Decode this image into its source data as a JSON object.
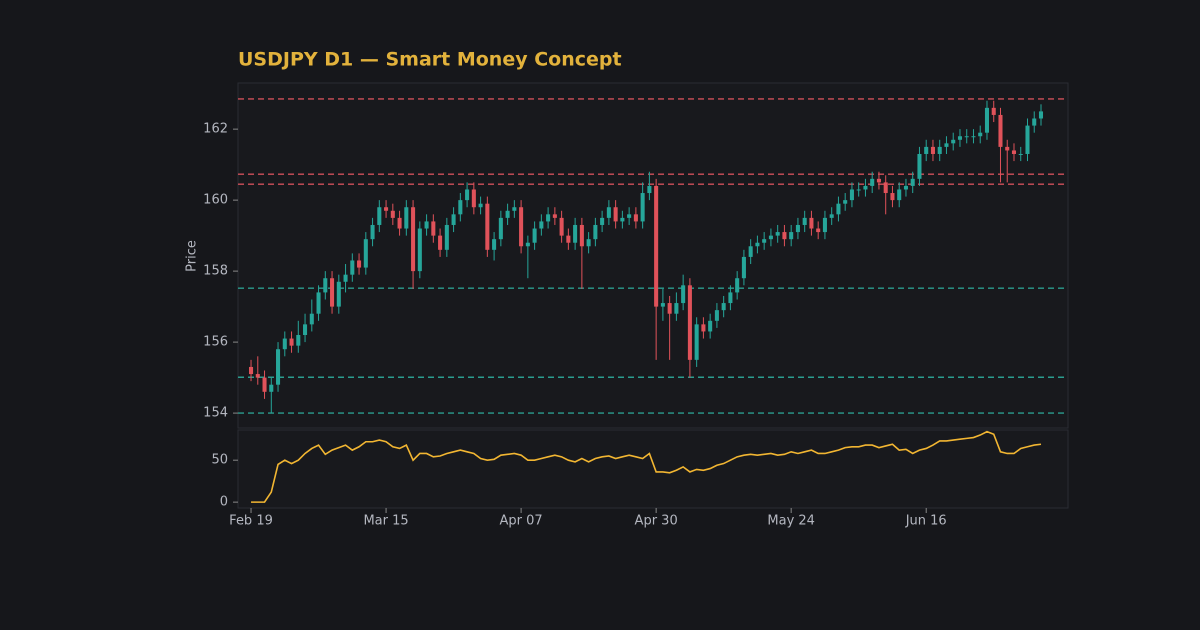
{
  "chart_data": [
    {
      "type": "candlestick",
      "title": "USDJPY D1 — Smart Money Concept",
      "ylabel": "Price",
      "up_color": "#26a69a",
      "down_color": "#e0525a",
      "xlim": [
        -1.93,
        121
      ],
      "ylim": [
        153.58,
        163.3
      ],
      "yticks": [
        154,
        156,
        158,
        160,
        162
      ],
      "levels": [
        {
          "value": 162.85,
          "color": "#d0505a"
        },
        {
          "value": 160.73,
          "color": "#d0505a"
        },
        {
          "value": 160.45,
          "color": "#d0505a"
        },
        {
          "value": 157.52,
          "color": "#2a9d8f"
        },
        {
          "value": 155.01,
          "color": "#2a9d8f"
        },
        {
          "value": 154.0,
          "color": "#2a9d8f"
        }
      ],
      "open": [
        155.3,
        155.1,
        155.0,
        154.6,
        154.8,
        155.8,
        156.1,
        155.9,
        156.2,
        156.5,
        156.8,
        157.4,
        157.8,
        157.0,
        157.7,
        157.9,
        158.3,
        158.1,
        158.9,
        159.3,
        159.8,
        159.7,
        159.5,
        159.2,
        159.8,
        158.0,
        159.2,
        159.4,
        159.0,
        158.6,
        159.3,
        159.6,
        160.0,
        160.3,
        159.8,
        159.9,
        158.6,
        158.9,
        159.5,
        159.7,
        159.8,
        158.7,
        158.8,
        159.2,
        159.4,
        159.6,
        159.5,
        159.0,
        158.8,
        159.3,
        158.7,
        158.9,
        159.3,
        159.5,
        159.8,
        159.4,
        159.5,
        159.6,
        159.4,
        160.2,
        160.4,
        157.0,
        157.1,
        156.8,
        157.1,
        157.6,
        155.5,
        156.5,
        156.3,
        156.6,
        156.9,
        157.1,
        157.4,
        157.8,
        158.4,
        158.7,
        158.8,
        158.9,
        159.0,
        159.1,
        158.9,
        159.1,
        159.3,
        159.5,
        159.2,
        159.1,
        159.5,
        159.6,
        159.9,
        160.0,
        160.3,
        160.3,
        160.4,
        160.6,
        160.5,
        160.2,
        160.0,
        160.3,
        160.4,
        160.6,
        161.3,
        161.5,
        161.3,
        161.5,
        161.6,
        161.7,
        161.8,
        161.8,
        161.8,
        161.9,
        162.6,
        162.4,
        161.5,
        161.4,
        161.3,
        161.3,
        162.1,
        162.3
      ],
      "high": [
        155.5,
        155.6,
        155.2,
        155.0,
        156.0,
        156.3,
        156.3,
        156.6,
        156.8,
        157.2,
        157.6,
        158.0,
        158.0,
        157.9,
        158.2,
        158.5,
        158.5,
        159.1,
        159.5,
        160.0,
        160.0,
        159.9,
        159.7,
        160.0,
        160.0,
        159.4,
        159.6,
        159.6,
        159.2,
        159.5,
        159.8,
        160.2,
        160.5,
        160.5,
        160.1,
        160.1,
        159.1,
        159.7,
        159.9,
        160.0,
        160.0,
        159.0,
        159.4,
        159.6,
        159.8,
        159.8,
        159.7,
        159.2,
        159.5,
        159.5,
        159.1,
        159.5,
        159.7,
        160.0,
        160.0,
        159.7,
        159.8,
        159.8,
        160.5,
        160.8,
        160.6,
        157.5,
        157.3,
        157.4,
        157.9,
        157.8,
        156.7,
        156.7,
        156.8,
        157.1,
        157.3,
        157.6,
        158.0,
        158.6,
        158.9,
        159.0,
        159.1,
        159.2,
        159.3,
        159.3,
        159.3,
        159.5,
        159.7,
        159.7,
        159.4,
        159.7,
        159.8,
        160.1,
        160.2,
        160.5,
        160.5,
        160.6,
        160.8,
        160.8,
        160.7,
        160.4,
        160.5,
        160.6,
        160.8,
        161.5,
        161.7,
        161.7,
        161.7,
        161.8,
        161.9,
        162.0,
        162.0,
        162.0,
        162.1,
        162.8,
        162.8,
        162.6,
        161.7,
        161.6,
        161.5,
        162.3,
        162.5,
        162.7
      ],
      "low": [
        154.9,
        154.8,
        154.4,
        154.0,
        154.6,
        155.6,
        155.7,
        155.7,
        156.0,
        156.3,
        156.6,
        157.2,
        156.8,
        156.8,
        157.4,
        157.7,
        157.9,
        157.9,
        158.7,
        159.1,
        159.5,
        159.3,
        159.0,
        159.0,
        157.5,
        157.8,
        159.0,
        158.8,
        158.4,
        158.4,
        159.1,
        159.4,
        159.8,
        159.6,
        159.6,
        158.4,
        158.3,
        158.7,
        159.3,
        159.5,
        158.5,
        157.8,
        158.6,
        159.0,
        159.2,
        159.3,
        158.8,
        158.6,
        158.6,
        157.5,
        158.5,
        158.7,
        159.1,
        159.3,
        159.2,
        159.2,
        159.3,
        159.2,
        159.2,
        160.0,
        155.5,
        156.6,
        155.5,
        156.6,
        156.9,
        155.0,
        155.3,
        156.1,
        156.1,
        156.4,
        156.7,
        156.9,
        157.2,
        157.6,
        158.2,
        158.5,
        158.6,
        158.7,
        158.8,
        158.7,
        158.7,
        158.9,
        159.1,
        159.0,
        158.9,
        158.9,
        159.3,
        159.4,
        159.7,
        159.8,
        160.1,
        160.1,
        160.2,
        160.3,
        159.6,
        159.8,
        159.8,
        160.1,
        160.2,
        160.4,
        161.1,
        161.1,
        161.1,
        161.3,
        161.4,
        161.5,
        161.6,
        161.6,
        161.6,
        161.7,
        162.2,
        160.5,
        160.5,
        161.1,
        161.1,
        161.1,
        161.9,
        162.1
      ],
      "close": [
        155.1,
        155.0,
        154.6,
        154.8,
        155.8,
        156.1,
        155.9,
        156.2,
        156.5,
        156.8,
        157.4,
        157.8,
        157.0,
        157.7,
        157.9,
        158.3,
        158.1,
        158.9,
        159.3,
        159.8,
        159.7,
        159.5,
        159.2,
        159.8,
        158.0,
        159.2,
        159.4,
        159.0,
        158.6,
        159.3,
        159.6,
        160.0,
        160.3,
        159.8,
        159.9,
        158.6,
        158.9,
        159.5,
        159.7,
        159.8,
        158.7,
        158.8,
        159.2,
        159.4,
        159.6,
        159.5,
        159.0,
        158.8,
        159.3,
        158.7,
        158.9,
        159.3,
        159.5,
        159.8,
        159.4,
        159.5,
        159.6,
        159.4,
        160.2,
        160.4,
        157.0,
        157.1,
        156.8,
        157.1,
        157.6,
        155.5,
        156.5,
        156.3,
        156.6,
        156.9,
        157.1,
        157.4,
        157.8,
        158.4,
        158.7,
        158.8,
        158.9,
        159.0,
        159.1,
        158.9,
        159.1,
        159.3,
        159.5,
        159.2,
        159.1,
        159.5,
        159.6,
        159.9,
        160.0,
        160.3,
        160.3,
        160.4,
        160.6,
        160.5,
        160.2,
        160.0,
        160.3,
        160.4,
        160.6,
        161.3,
        161.5,
        161.3,
        161.5,
        161.6,
        161.7,
        161.8,
        161.8,
        161.8,
        161.9,
        162.6,
        162.4,
        161.5,
        161.4,
        161.3,
        161.3,
        162.1,
        162.3,
        162.5
      ]
    },
    {
      "type": "line",
      "xlim": [
        -1.93,
        121
      ],
      "ylim": [
        -7,
        86
      ],
      "yticks": [
        0,
        50
      ],
      "xticks": [
        {
          "value": 0,
          "label": "Feb 19"
        },
        {
          "value": 20,
          "label": "Mar 15"
        },
        {
          "value": 40,
          "label": "Apr 07"
        },
        {
          "value": 60,
          "label": "Apr 30"
        },
        {
          "value": 80,
          "label": "May 24"
        },
        {
          "value": 100,
          "label": "Jun 16"
        }
      ],
      "series": [
        {
          "color": "#f2b632",
          "values": [
            0,
            0,
            0,
            12,
            45,
            50,
            46,
            50,
            58,
            64,
            68,
            57,
            62,
            65,
            68,
            62,
            66,
            72,
            72,
            74,
            72,
            66,
            64,
            68,
            50,
            58,
            58,
            54,
            55,
            58,
            60,
            62,
            60,
            58,
            52,
            50,
            51,
            56,
            57,
            58,
            56,
            50,
            50,
            52,
            54,
            56,
            54,
            50,
            48,
            52,
            48,
            52,
            54,
            55,
            52,
            54,
            56,
            54,
            52,
            58,
            36,
            36,
            35,
            38,
            42,
            36,
            39,
            38,
            40,
            44,
            46,
            50,
            54,
            56,
            57,
            56,
            57,
            58,
            56,
            57,
            60,
            58,
            60,
            62,
            58,
            58,
            60,
            62,
            65,
            66,
            66,
            68,
            68,
            65,
            67,
            69,
            62,
            63,
            58,
            62,
            64,
            68,
            73,
            73,
            74,
            75,
            76,
            77,
            80,
            84,
            81,
            60,
            58,
            58,
            64,
            66,
            68,
            69
          ]
        }
      ]
    }
  ]
}
